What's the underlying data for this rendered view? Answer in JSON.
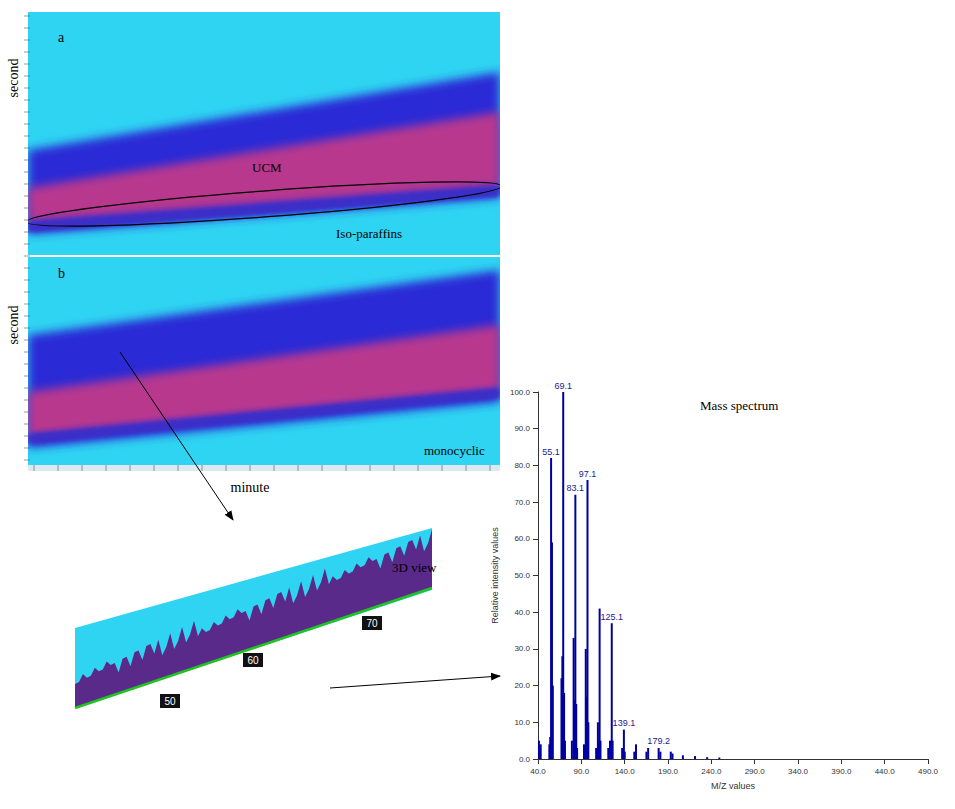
{
  "panels": [
    {
      "letter": "a",
      "y_label": "second",
      "labels": [
        "UCM",
        "Iso-paraffins"
      ]
    },
    {
      "letter": "b",
      "y_label": "second",
      "x_label": "minute",
      "labels": [
        "monocyclic"
      ]
    }
  ],
  "view_3d": {
    "title": "3D view",
    "ticks": [
      "50",
      "60",
      "70"
    ]
  },
  "chart_data": {
    "type": "bar",
    "title": "Mass spectrum",
    "x_label": "M/Z values",
    "y_label": "Relative intensity values",
    "x": [
      41.1,
      42.1,
      43.1,
      53.1,
      54.1,
      55.1,
      56.1,
      57.1,
      67.1,
      68.1,
      69.1,
      70.1,
      71.1,
      79.1,
      81.1,
      82.1,
      83.1,
      84.1,
      85.1,
      93.1,
      95.1,
      96.1,
      97.1,
      98.1,
      107.1,
      109.1,
      110.1,
      111.1,
      112.1,
      121.1,
      123.1,
      124.1,
      125.1,
      126.1,
      137.1,
      139.1,
      140.1,
      151.1,
      153.1,
      165.1,
      167.1,
      179.2,
      181.2,
      193.2,
      195.2,
      207.2,
      221.2,
      235.2,
      249.2
    ],
    "values": [
      5,
      2,
      4,
      4,
      6,
      82,
      59,
      20,
      22,
      28,
      100,
      18,
      5,
      5,
      33,
      16,
      72,
      15,
      3,
      4,
      30,
      17,
      76,
      10,
      3,
      10,
      5,
      41,
      5,
      3,
      5,
      4,
      37,
      5,
      3,
      8,
      2,
      2,
      4,
      2,
      3,
      3,
      2,
      2,
      1.5,
      1,
      0.8,
      0.5,
      0.4
    ],
    "peak_labels": [
      55.1,
      69.1,
      83.1,
      97.1,
      125.1,
      139.1,
      179.2
    ],
    "color": "#0000a0",
    "xlim": [
      40,
      490
    ],
    "xticks": [
      {
        "value": 40,
        "label": "40.0"
      },
      {
        "value": 90,
        "label": "90.0"
      },
      {
        "value": 140,
        "label": "140.0"
      },
      {
        "value": 190,
        "label": "190.0"
      },
      {
        "value": 240,
        "label": "240.0"
      },
      {
        "value": 290,
        "label": "290.0"
      },
      {
        "value": 340,
        "label": "340.0"
      },
      {
        "value": 390,
        "label": "390.0"
      },
      {
        "value": 440,
        "label": "440.0"
      },
      {
        "value": 490,
        "label": "490.0"
      }
    ],
    "ylim": [
      0,
      100
    ],
    "yticks": [
      {
        "value": 0,
        "label": "0.0"
      },
      {
        "value": 10,
        "label": "10.0"
      },
      {
        "value": 20,
        "label": "20.0"
      },
      {
        "value": 30,
        "label": "30.0"
      },
      {
        "value": 40,
        "label": "40.0"
      },
      {
        "value": 50,
        "label": "50.0"
      },
      {
        "value": 60,
        "label": "60.0"
      },
      {
        "value": 70,
        "label": "70.0"
      },
      {
        "value": 80,
        "label": "80.0"
      },
      {
        "value": 90,
        "label": "90.0"
      },
      {
        "value": 100,
        "label": "100.0"
      }
    ],
    "grid": false
  }
}
